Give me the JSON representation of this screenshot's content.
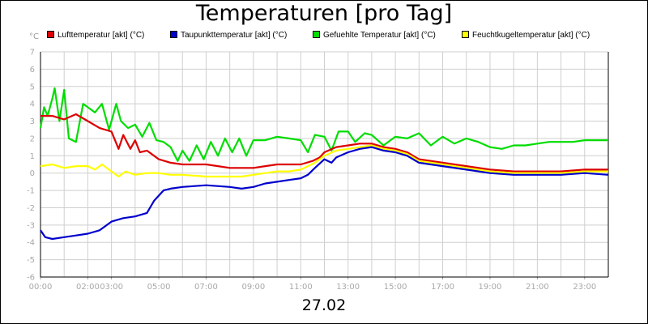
{
  "chart_data": {
    "type": "line",
    "title": "Temperaturen [pro Tag]",
    "date_label": "27.02",
    "unit_label": "°C",
    "ylim": [
      -6,
      7
    ],
    "yticks": [
      7,
      6,
      5,
      4,
      3,
      2,
      1,
      0,
      -1,
      -2,
      -3,
      -4,
      -5,
      -6
    ],
    "xlim": [
      0,
      24
    ],
    "xticks": [
      {
        "x": 0,
        "label": "00:00"
      },
      {
        "x": 2,
        "label": "02:00"
      },
      {
        "x": 3,
        "label": "03:00"
      },
      {
        "x": 5,
        "label": "05:00"
      },
      {
        "x": 7,
        "label": "07:00"
      },
      {
        "x": 9,
        "label": "09:00"
      },
      {
        "x": 11,
        "label": "11:00"
      },
      {
        "x": 13,
        "label": "13:00"
      },
      {
        "x": 15,
        "label": "15:00"
      },
      {
        "x": 17,
        "label": "17:00"
      },
      {
        "x": 19,
        "label": "19:00"
      },
      {
        "x": 21,
        "label": "21:00"
      },
      {
        "x": 23,
        "label": "23:00"
      }
    ],
    "grid": true,
    "legend_position": "top",
    "series": [
      {
        "name": "Lufttemperatur [akt] (°C)",
        "color": "#dd0000",
        "points": [
          [
            0,
            3.3
          ],
          [
            0.5,
            3.3
          ],
          [
            1,
            3.1
          ],
          [
            1.5,
            3.4
          ],
          [
            2,
            3.0
          ],
          [
            2.5,
            2.6
          ],
          [
            3,
            2.4
          ],
          [
            3.3,
            1.4
          ],
          [
            3.5,
            2.2
          ],
          [
            3.8,
            1.4
          ],
          [
            4,
            1.9
          ],
          [
            4.2,
            1.2
          ],
          [
            4.5,
            1.3
          ],
          [
            4.8,
            1.0
          ],
          [
            5,
            0.8
          ],
          [
            5.5,
            0.6
          ],
          [
            6,
            0.5
          ],
          [
            6.5,
            0.5
          ],
          [
            7,
            0.5
          ],
          [
            7.5,
            0.4
          ],
          [
            8,
            0.3
          ],
          [
            8.5,
            0.3
          ],
          [
            9,
            0.3
          ],
          [
            9.5,
            0.4
          ],
          [
            10,
            0.5
          ],
          [
            10.5,
            0.5
          ],
          [
            11,
            0.5
          ],
          [
            11.5,
            0.7
          ],
          [
            11.8,
            0.9
          ],
          [
            12,
            1.2
          ],
          [
            12.5,
            1.5
          ],
          [
            13,
            1.6
          ],
          [
            13.5,
            1.7
          ],
          [
            14,
            1.7
          ],
          [
            14.5,
            1.5
          ],
          [
            15,
            1.4
          ],
          [
            15.5,
            1.2
          ],
          [
            16,
            0.8
          ],
          [
            16.5,
            0.7
          ],
          [
            17,
            0.6
          ],
          [
            18,
            0.4
          ],
          [
            19,
            0.2
          ],
          [
            20,
            0.1
          ],
          [
            21,
            0.1
          ],
          [
            22,
            0.1
          ],
          [
            23,
            0.2
          ],
          [
            24,
            0.2
          ]
        ]
      },
      {
        "name": "Taupunkttemperatur [akt] (°C)",
        "color": "#0000cc",
        "points": [
          [
            0,
            -3.3
          ],
          [
            0.2,
            -3.7
          ],
          [
            0.5,
            -3.8
          ],
          [
            1,
            -3.7
          ],
          [
            1.5,
            -3.6
          ],
          [
            2,
            -3.5
          ],
          [
            2.5,
            -3.3
          ],
          [
            3,
            -2.8
          ],
          [
            3.5,
            -2.6
          ],
          [
            4,
            -2.5
          ],
          [
            4.5,
            -2.3
          ],
          [
            4.8,
            -1.6
          ],
          [
            5.2,
            -1.0
          ],
          [
            5.5,
            -0.9
          ],
          [
            6,
            -0.8
          ],
          [
            7,
            -0.7
          ],
          [
            8,
            -0.8
          ],
          [
            8.5,
            -0.9
          ],
          [
            9,
            -0.8
          ],
          [
            9.5,
            -0.6
          ],
          [
            10,
            -0.5
          ],
          [
            10.5,
            -0.4
          ],
          [
            11,
            -0.3
          ],
          [
            11.3,
            -0.1
          ],
          [
            11.6,
            0.3
          ],
          [
            12,
            0.8
          ],
          [
            12.3,
            0.6
          ],
          [
            12.5,
            0.9
          ],
          [
            13,
            1.2
          ],
          [
            13.5,
            1.4
          ],
          [
            14,
            1.5
          ],
          [
            14.5,
            1.3
          ],
          [
            15,
            1.2
          ],
          [
            15.5,
            1.0
          ],
          [
            16,
            0.6
          ],
          [
            16.5,
            0.5
          ],
          [
            17,
            0.4
          ],
          [
            18,
            0.2
          ],
          [
            19,
            0.0
          ],
          [
            20,
            -0.1
          ],
          [
            21,
            -0.1
          ],
          [
            22,
            -0.1
          ],
          [
            23,
            0.0
          ],
          [
            24,
            -0.1
          ]
        ]
      },
      {
        "name": "Gefuehlte Temperatur [akt] (°C)",
        "color": "#00dd00",
        "points": [
          [
            0,
            2.6
          ],
          [
            0.15,
            3.8
          ],
          [
            0.3,
            3.3
          ],
          [
            0.5,
            4.3
          ],
          [
            0.6,
            4.9
          ],
          [
            0.8,
            3.0
          ],
          [
            1.0,
            4.8
          ],
          [
            1.2,
            2.0
          ],
          [
            1.5,
            1.8
          ],
          [
            1.8,
            4.0
          ],
          [
            2.0,
            3.8
          ],
          [
            2.3,
            3.5
          ],
          [
            2.6,
            4.0
          ],
          [
            2.9,
            2.5
          ],
          [
            3.2,
            4.0
          ],
          [
            3.4,
            3.0
          ],
          [
            3.7,
            2.6
          ],
          [
            4.0,
            2.8
          ],
          [
            4.3,
            2.1
          ],
          [
            4.6,
            2.9
          ],
          [
            4.9,
            1.9
          ],
          [
            5.2,
            1.8
          ],
          [
            5.5,
            1.5
          ],
          [
            5.8,
            0.7
          ],
          [
            6.0,
            1.3
          ],
          [
            6.3,
            0.7
          ],
          [
            6.6,
            1.6
          ],
          [
            6.9,
            0.8
          ],
          [
            7.2,
            1.8
          ],
          [
            7.5,
            1.0
          ],
          [
            7.8,
            2.0
          ],
          [
            8.1,
            1.2
          ],
          [
            8.4,
            2.0
          ],
          [
            8.7,
            1.0
          ],
          [
            9.0,
            1.9
          ],
          [
            9.5,
            1.9
          ],
          [
            10.0,
            2.1
          ],
          [
            10.5,
            2.0
          ],
          [
            11.0,
            1.9
          ],
          [
            11.3,
            1.2
          ],
          [
            11.6,
            2.2
          ],
          [
            12.0,
            2.1
          ],
          [
            12.3,
            1.3
          ],
          [
            12.6,
            2.4
          ],
          [
            13.0,
            2.4
          ],
          [
            13.3,
            1.8
          ],
          [
            13.7,
            2.3
          ],
          [
            14.0,
            2.2
          ],
          [
            14.5,
            1.6
          ],
          [
            15.0,
            2.1
          ],
          [
            15.5,
            2.0
          ],
          [
            16.0,
            2.3
          ],
          [
            16.5,
            1.6
          ],
          [
            17.0,
            2.1
          ],
          [
            17.5,
            1.7
          ],
          [
            18.0,
            2.0
          ],
          [
            18.5,
            1.8
          ],
          [
            19.0,
            1.5
          ],
          [
            19.5,
            1.4
          ],
          [
            20.0,
            1.6
          ],
          [
            20.5,
            1.6
          ],
          [
            21.0,
            1.7
          ],
          [
            21.5,
            1.8
          ],
          [
            22.0,
            1.8
          ],
          [
            22.5,
            1.8
          ],
          [
            23.0,
            1.9
          ],
          [
            23.5,
            1.9
          ],
          [
            24.0,
            1.9
          ]
        ]
      },
      {
        "name": "Feuchtkugeltemperatur [akt] (°C)",
        "color": "#ffff00",
        "points": [
          [
            0,
            0.4
          ],
          [
            0.5,
            0.5
          ],
          [
            1,
            0.3
          ],
          [
            1.5,
            0.4
          ],
          [
            2,
            0.4
          ],
          [
            2.3,
            0.2
          ],
          [
            2.6,
            0.5
          ],
          [
            3,
            0.1
          ],
          [
            3.3,
            -0.2
          ],
          [
            3.6,
            0.1
          ],
          [
            4,
            -0.1
          ],
          [
            4.5,
            0.0
          ],
          [
            5,
            0.0
          ],
          [
            5.5,
            -0.1
          ],
          [
            6,
            -0.1
          ],
          [
            7,
            -0.2
          ],
          [
            8,
            -0.2
          ],
          [
            8.5,
            -0.2
          ],
          [
            9,
            -0.1
          ],
          [
            9.5,
            0.0
          ],
          [
            10,
            0.1
          ],
          [
            10.5,
            0.1
          ],
          [
            11,
            0.2
          ],
          [
            11.3,
            0.4
          ],
          [
            11.6,
            0.6
          ],
          [
            12,
            1.0
          ],
          [
            12.5,
            1.3
          ],
          [
            13,
            1.4
          ],
          [
            13.5,
            1.5
          ],
          [
            14,
            1.6
          ],
          [
            14.5,
            1.4
          ],
          [
            15,
            1.3
          ],
          [
            15.5,
            1.1
          ],
          [
            16,
            0.7
          ],
          [
            16.5,
            0.6
          ],
          [
            17,
            0.5
          ],
          [
            18,
            0.3
          ],
          [
            19,
            0.1
          ],
          [
            20,
            0.0
          ],
          [
            21,
            0.0
          ],
          [
            22,
            0.0
          ],
          [
            23,
            0.1
          ],
          [
            24,
            0.1
          ]
        ]
      }
    ]
  }
}
